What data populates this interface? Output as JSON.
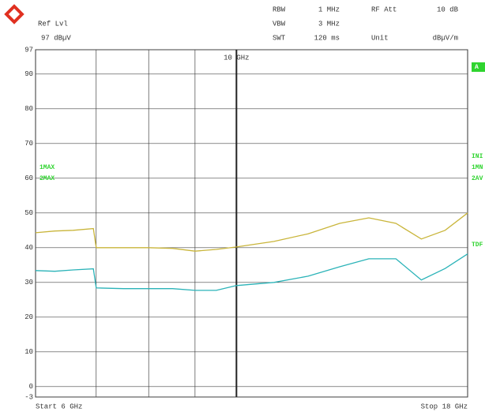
{
  "chart_data": {
    "type": "line",
    "ref_lvl_label": "Ref Lvl",
    "ref_lvl_value": "97 dBµV",
    "settings": [
      {
        "label": "RBW",
        "value": "1 MHz"
      },
      {
        "label": "RF Att",
        "value": "10 dB"
      },
      {
        "label": "VBW",
        "value": "3 MHz"
      },
      {
        "label": "SWT",
        "value": "120 ms"
      },
      {
        "label": "Unit",
        "value": "dBµV/m"
      }
    ],
    "start_label": "Start 6 GHz",
    "stop_label": "Stop 18 GHz",
    "marker": {
      "value": 10,
      "label": "10 GHz"
    },
    "side_labels": [
      "A",
      "INI",
      "1MN",
      "2AV",
      "TDF"
    ],
    "xscale": "log",
    "xlim": [
      6,
      18
    ],
    "xgrid": [
      7,
      8,
      9
    ],
    "ylim": [
      -3,
      97
    ],
    "yticks": [
      -3,
      0,
      10,
      20,
      30,
      40,
      50,
      60,
      70,
      80,
      90,
      97
    ],
    "grid": true,
    "x": [
      6,
      6.3,
      6.6,
      6.95,
      7.0,
      7.5,
      8,
      8.5,
      9,
      9.5,
      10,
      11,
      12,
      13,
      14,
      15,
      16,
      17,
      18
    ],
    "series": [
      {
        "name": "1MAX",
        "color": "#c9b53a",
        "values": [
          44.3,
          44.8,
          45,
          45.5,
          40,
          40,
          40,
          39.8,
          39,
          39.5,
          40.2,
          41.8,
          44,
          47,
          48.6,
          47,
          42.5,
          45,
          50
        ]
      },
      {
        "name": "2MAX",
        "color": "#2bb3b8",
        "values": [
          33.4,
          33.2,
          33.6,
          33.9,
          28.4,
          28.2,
          28.2,
          28.2,
          27.7,
          27.7,
          29.1,
          30,
          31.8,
          34.5,
          36.8,
          36.8,
          30.7,
          34,
          38.2
        ]
      }
    ]
  }
}
